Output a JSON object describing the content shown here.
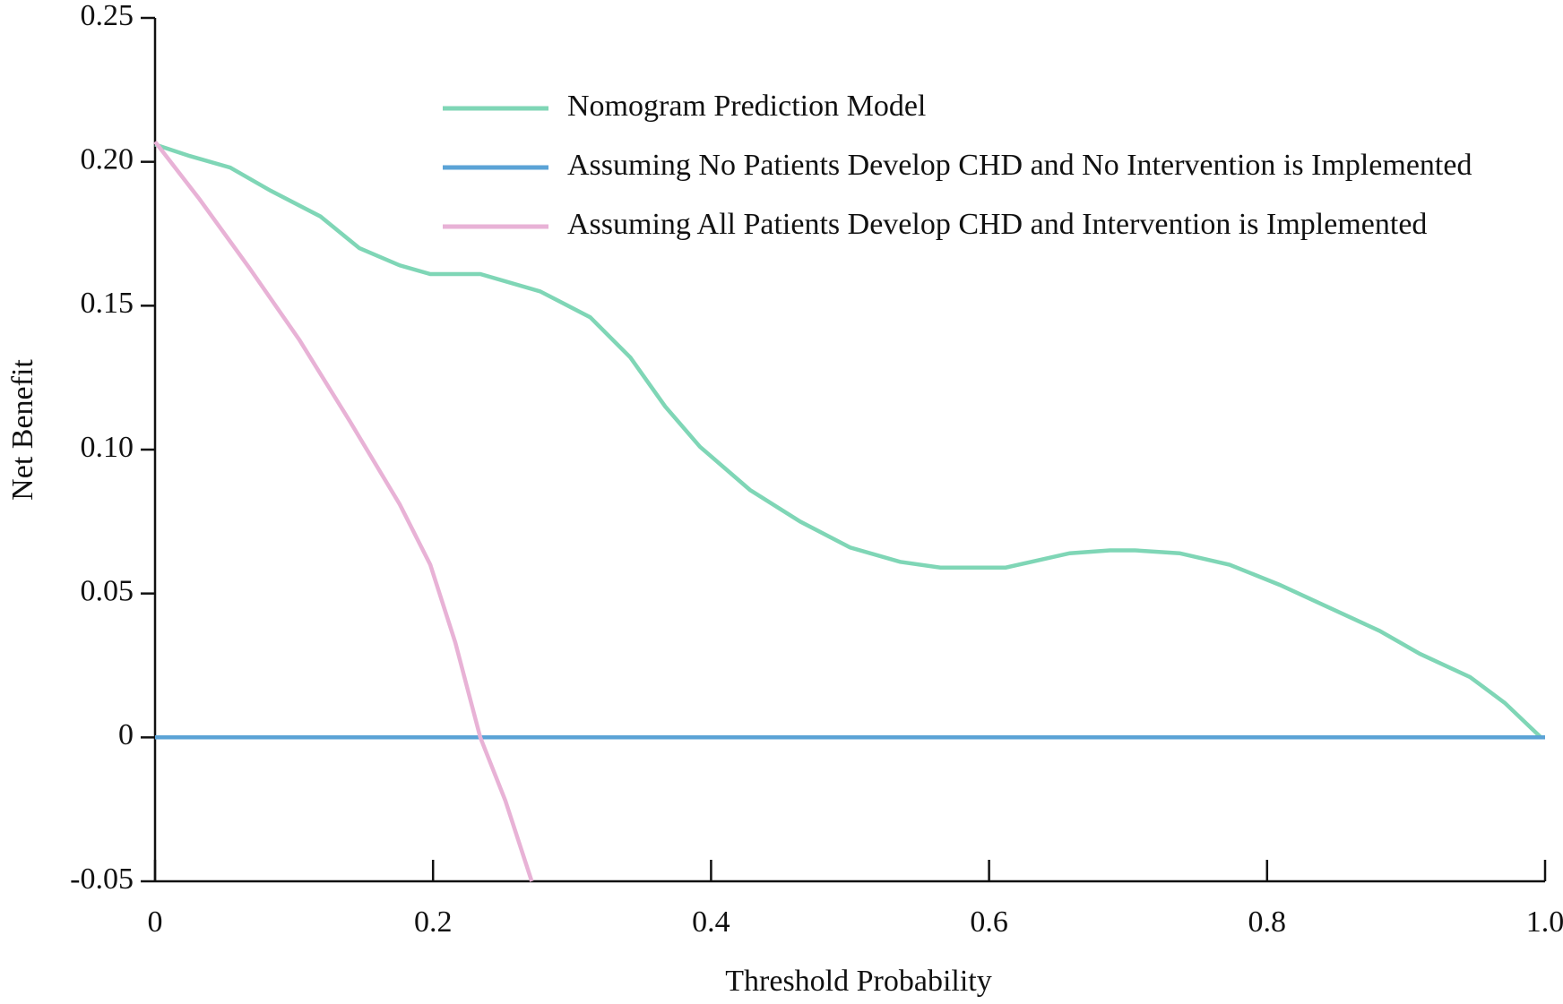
{
  "chart_data": {
    "type": "line",
    "xlabel": "Threshold Probability",
    "ylabel": "Net Benefit",
    "xlim": [
      0,
      1
    ],
    "ylim": [
      -0.05,
      0.25
    ],
    "xticks": [
      0,
      0.2,
      0.4,
      0.6,
      0.8,
      {
        "value": 1,
        "label": "1.0"
      }
    ],
    "yticks": [
      {
        "value": -0.05,
        "label": "-0.05"
      },
      0,
      {
        "value": 0.05,
        "label": "0.05"
      },
      {
        "value": 0.1,
        "label": "0.10"
      },
      {
        "value": 0.15,
        "label": "0.15"
      },
      {
        "value": 0.2,
        "label": "0.20"
      },
      {
        "value": 0.25,
        "label": "0.25"
      }
    ],
    "grid": false,
    "series": [
      {
        "name": "Nomogram Prediction Model",
        "color": "#7fd6b6",
        "x": [
          0,
          0.025,
          0.054,
          0.083,
          0.119,
          0.147,
          0.176,
          0.198,
          0.234,
          0.277,
          0.313,
          0.342,
          0.367,
          0.392,
          0.428,
          0.464,
          0.5,
          0.536,
          0.565,
          0.612,
          0.658,
          0.687,
          0.705,
          0.737,
          0.773,
          0.809,
          0.845,
          0.881,
          0.91,
          0.946,
          0.971,
          0.997
        ],
        "values": [
          0.206,
          0.202,
          0.198,
          0.19,
          0.181,
          0.17,
          0.164,
          0.161,
          0.161,
          0.155,
          0.146,
          0.132,
          0.115,
          0.101,
          0.086,
          0.075,
          0.066,
          0.061,
          0.059,
          0.059,
          0.064,
          0.065,
          0.065,
          0.064,
          0.06,
          0.053,
          0.045,
          0.037,
          0.029,
          0.021,
          0.012,
          0
        ]
      },
      {
        "name": "Assuming No Patients Develop CHD and No Intervention is Implemented",
        "color": "#5ba3d6",
        "x": [
          0,
          1
        ],
        "values": [
          0,
          0
        ]
      },
      {
        "name": "Assuming All Patients Develop CHD and Intervention is Implemented",
        "color": "#e8b2d6",
        "x": [
          0,
          0.032,
          0.068,
          0.104,
          0.14,
          0.176,
          0.198,
          0.216,
          0.234,
          0.252,
          0.271
        ],
        "values": [
          0.207,
          0.187,
          0.163,
          0.138,
          0.11,
          0.081,
          0.06,
          0.033,
          0,
          -0.022,
          -0.05
        ]
      }
    ]
  }
}
